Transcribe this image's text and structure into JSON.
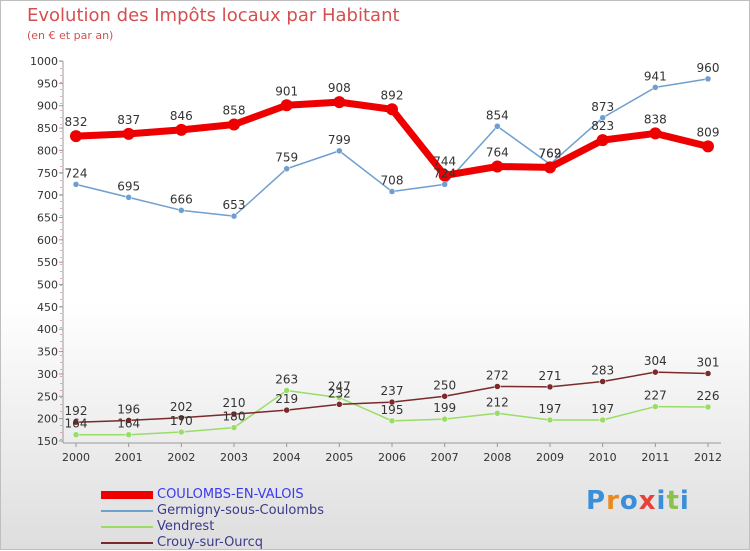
{
  "chart_data": {
    "type": "line",
    "title": "Evolution des Impôts locaux par Habitant",
    "subtitle": "(en € et par an)",
    "xlabel": "",
    "ylabel": "",
    "ylim": [
      150,
      1000
    ],
    "ytick_step": 50,
    "grid": false,
    "legend_position": "bottom-left",
    "x": [
      "2000",
      "2001",
      "2002",
      "2003",
      "2004",
      "2005",
      "2006",
      "2007",
      "2008",
      "2009",
      "2010",
      "2011",
      "2012"
    ],
    "series": [
      {
        "name": "COULOMBS-EN-VALOIS",
        "color": "#ee0000",
        "values": [
          832,
          837,
          846,
          858,
          901,
          908,
          892,
          744,
          764,
          762,
          823,
          838,
          809
        ]
      },
      {
        "name": "Germigny-sous-Coulombs",
        "color": "#6f9fcf",
        "values": [
          724,
          695,
          666,
          653,
          759,
          799,
          708,
          724,
          854,
          769,
          873,
          941,
          960
        ]
      },
      {
        "name": "Vendrest",
        "color": "#99dd66",
        "values": [
          164,
          164,
          170,
          180,
          263,
          247,
          195,
          199,
          212,
          197,
          197,
          227,
          226
        ]
      },
      {
        "name": "Crouy-sur-Ourcq",
        "color": "#7a2a2a",
        "values": [
          192,
          196,
          202,
          210,
          219,
          232,
          237,
          250,
          272,
          271,
          283,
          304,
          301
        ]
      }
    ]
  },
  "logo": {
    "text": "Proxiti",
    "letters": [
      "P",
      "r",
      "o",
      "x",
      "i",
      "t",
      "i"
    ],
    "colors": [
      "#3a8fd8",
      "#e98a1f",
      "#3a8fd8",
      "#e8403a",
      "#3a8fd8",
      "#8bc34a",
      "#3a8fd8"
    ]
  }
}
